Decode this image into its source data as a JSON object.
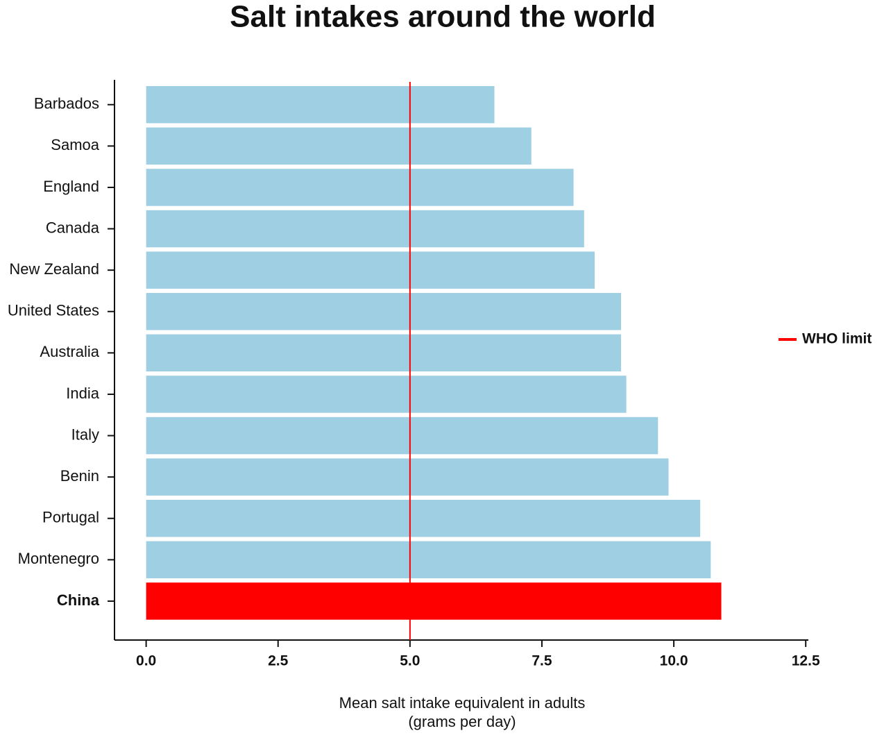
{
  "chart_data": {
    "type": "bar",
    "orientation": "horizontal",
    "title": "Salt intakes around the world",
    "xlabel": [
      "Mean salt intake equivalent in adults",
      "(grams per day)"
    ],
    "categories": [
      "Barbados",
      "Samoa",
      "England",
      "Canada",
      "New Zealand",
      "United States",
      "Australia",
      "India",
      "Italy",
      "Benin",
      "Portugal",
      "Montenegro",
      "China"
    ],
    "values": [
      6.6,
      7.3,
      8.1,
      8.3,
      8.5,
      9.0,
      9.0,
      9.1,
      9.7,
      9.9,
      10.5,
      10.7,
      10.9
    ],
    "color": "#9ecfe3",
    "highlight": {
      "category": "China",
      "color": "#ff0000"
    },
    "xlim": [
      -0.6,
      12.55
    ],
    "xticks": [
      {
        "value": 0,
        "label": "0.0"
      },
      2.5,
      {
        "value": 5,
        "label": "5.0"
      },
      7.5,
      {
        "value": 10,
        "label": "10.0"
      },
      12.5
    ],
    "reference_line": {
      "value": 5,
      "label": "WHO limit",
      "color": "#ff0000"
    },
    "legend": "right",
    "grid": false
  }
}
